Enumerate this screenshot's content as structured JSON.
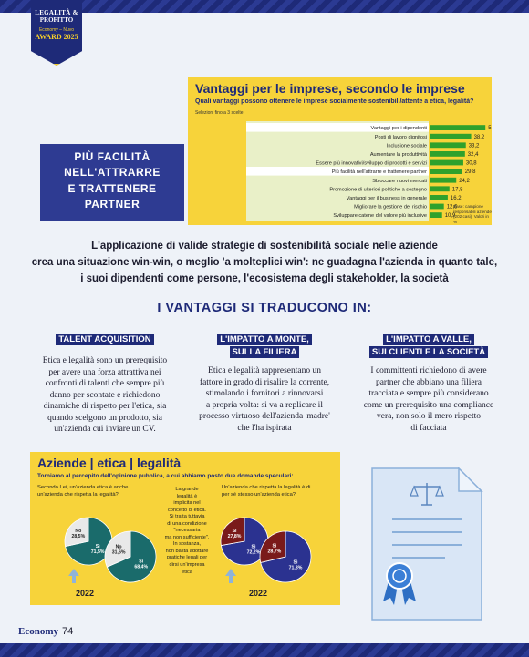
{
  "badge": {
    "line1": "LEGALITÀ &",
    "line2": "PROFITTO",
    "line3": "Economy – Nuvo",
    "line4": "AWARD 2025"
  },
  "side_panel": {
    "lines": [
      "PIÙ FACILITÀ",
      "NELL'ATTRARRE",
      "E TRATTENERE",
      "PARTNER"
    ]
  },
  "chart_box": {
    "title": "Vantaggi per le imprese, secondo le imprese",
    "subtitle": "Quali vantaggi possono ottenere le imprese socialmente sostenibili/attente a etica, legalità?",
    "note": "Selezioni fino a 3 scelte",
    "base_note": "Base: campione responsabili aziende (202 casi). Valori in %"
  },
  "chart_data": {
    "type": "bar",
    "orientation": "horizontal",
    "categories": [
      "Vantaggi per i dipendenti",
      "Posti di lavoro dignitosi",
      "Inclusione sociale",
      "Aumentare la produttività",
      "Essere più innovativi/sviluppo di prodotti e servizi",
      "Più facilità nell'attrarre e trattenere partner",
      "Sbloccare nuovi mercati",
      "Promozione di ulteriori politiche a sostegno",
      "Vantaggi per il business in generale",
      "Migliorare la gestione del rischio",
      "Sviluppare catene del valore più inclusive"
    ],
    "values": [
      51.6,
      38.2,
      33.2,
      32.4,
      30.8,
      29.8,
      24.2,
      17.8,
      16.2,
      12.6,
      10.9
    ],
    "value_labels": [
      "51,6",
      "38,2",
      "33,2",
      "32,4",
      "30,8",
      "29,8",
      "24,2",
      "17,8",
      "16,2",
      "12,6",
      "10,9"
    ],
    "highlighted_rows": [
      0,
      5
    ],
    "bar_color": "#2fa12c",
    "xlim": [
      0,
      60
    ]
  },
  "intro": {
    "lines": [
      "L'applicazione di valide strategie di sostenibilità sociale nelle aziende",
      "crea una situazione win-win, o meglio 'a molteplici win': ne guadagna l'azienda in quanto tale,",
      "i suoi dipendenti come persone, l'ecosistema degli stakeholder, la società"
    ]
  },
  "heading": "I VANTAGGI SI TRADUCONO IN:",
  "columns": [
    {
      "title_lines": [
        "TALENT ACQUISITION"
      ],
      "text_lines": [
        "Etica e legalità sono un prerequisito",
        "per avere una forza attrattiva nei",
        "confronti di talenti che sempre più",
        "danno per scontate e richiedono",
        "dinamiche di rispetto per l'etica, sia",
        "quando scelgono un prodotto, sia",
        "un'azienda cui inviare un CV."
      ]
    },
    {
      "title_lines": [
        "L'IMPATTO A MONTE,",
        "SULLA FILIERA"
      ],
      "text_lines": [
        "Etica e legalità rappresentano un",
        "fattore in grado di risalire la corrente,",
        "stimolando i fornitori a rinnovarsi",
        "a propria volta: si va a replicare il",
        "processo virtuoso dell'azienda 'madre'",
        "che l'ha ispirata"
      ]
    },
    {
      "title_lines": [
        "L'IMPATTO A VALLE,",
        "SUI CLIENTI E LA SOCIETÀ"
      ],
      "text_lines": [
        "I committenti richiedono di avere",
        "partner che abbiano una filiera",
        "tracciata e sempre più considerano",
        "come un prerequisito una compliance",
        "vera, non solo il mero rispetto",
        "di facciata"
      ]
    }
  ],
  "opinion_box": {
    "title": "Aziende | etica | legalità",
    "subtitle": "Torniamo al percepito dell'opinione pubblica, a cui abbiamo posto due domande speculari:",
    "q1": [
      "Secondo Lei, un'azienda etica è anche",
      "un'azienda che rispetta la legalità?"
    ],
    "q2": [
      "Un'azienda che rispetta la legalità è di",
      "per sé stesso un'azienda etica?"
    ],
    "middle_text": [
      "La grande",
      "legalità è",
      "implicita nel",
      "concetto di etica.",
      "Si tratta tuttavia",
      "di una condizione",
      "\"necessaria",
      "ma non sufficiente\".",
      "In sostanza,",
      "non basta adottare",
      "pratiche legali per",
      "dirsi un'impresa",
      "etica"
    ],
    "year_left": "2022",
    "year_right": "2022",
    "pies": [
      {
        "year": "2022",
        "yes": 71.5,
        "no": 28.5,
        "yes_label": "Sì 71,5%",
        "no_label": "No 28,5%",
        "yes_color": "#1a6b6b",
        "no_color": "#e9e9e9"
      },
      {
        "year": "2025",
        "yes": 68.4,
        "no": 31.6,
        "yes_label": "Sì 68,4%",
        "no_label": "No 31,6%",
        "yes_color": "#1a6b6b",
        "no_color": "#e9e9e9"
      },
      {
        "year": "2022",
        "yes": 72.2,
        "no": 27.8,
        "yes_label": "Sì 72,2%",
        "no_label": "Sì 27,8%",
        "yes_color": "#2b3290",
        "no_color": "#7a1a1a"
      },
      {
        "year": "2025",
        "yes": 71.3,
        "no": 28.7,
        "yes_label": "Sì 71,3%",
        "no_label": "Sì 28,7%",
        "yes_color": "#2b3290",
        "no_color": "#7a1a1a"
      }
    ]
  },
  "document_icon_name": "certificate-document-icon",
  "footer": {
    "magazine": "Economy",
    "page": "74"
  }
}
